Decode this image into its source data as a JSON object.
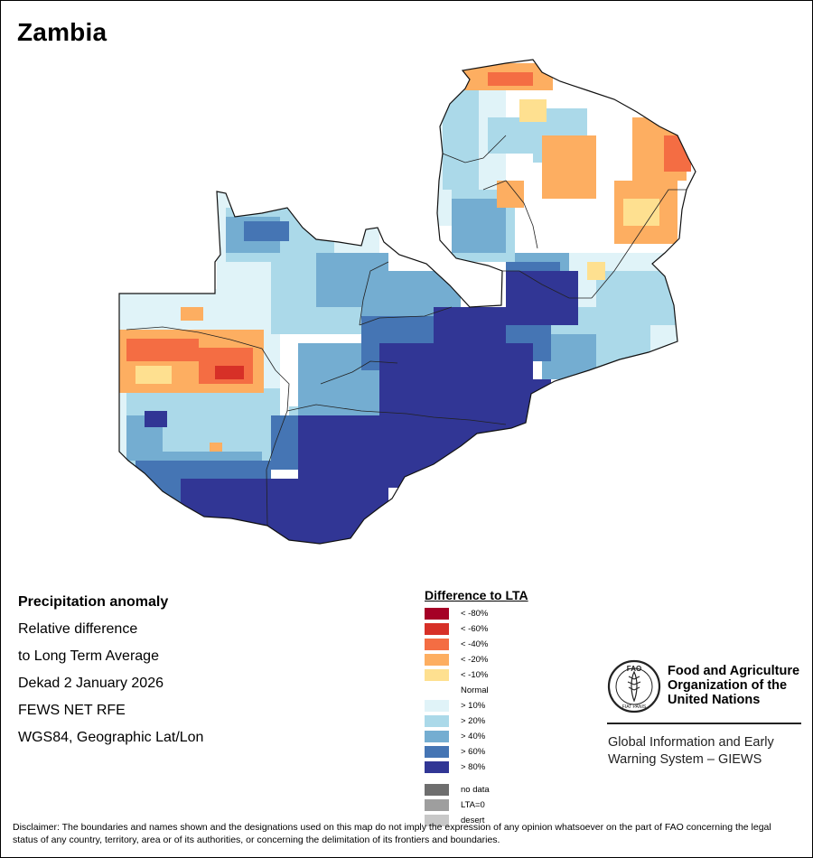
{
  "map": {
    "title": "Zambia",
    "info_lines": [
      "Precipitation anomaly",
      "Relative difference",
      "to Long Term Average",
      "Dekad 2 January 2026",
      "FEWS NET RFE",
      "WGS84, Geographic Lat/Lon"
    ]
  },
  "legend": {
    "title": "Difference to LTA",
    "items": [
      {
        "label": "< -80%",
        "color": "#a50026"
      },
      {
        "label": "< -60%",
        "color": "#d73027"
      },
      {
        "label": "< -40%",
        "color": "#f46d43"
      },
      {
        "label": "< -20%",
        "color": "#fdae61"
      },
      {
        "label": "< -10%",
        "color": "#fee090"
      },
      {
        "label": "Normal",
        "color": "#ffffff"
      },
      {
        "label": "> 10%",
        "color": "#e0f3f8"
      },
      {
        "label": "> 20%",
        "color": "#abd9e9"
      },
      {
        "label": "> 40%",
        "color": "#74add1"
      },
      {
        "label": "> 60%",
        "color": "#4575b4"
      },
      {
        "label": "> 80%",
        "color": "#313695"
      }
    ],
    "extra": [
      {
        "label": "no data",
        "color": "#6e6e6e"
      },
      {
        "label": "LTA=0",
        "color": "#9e9e9e"
      },
      {
        "label": "desert",
        "color": "#c8c8c8"
      }
    ]
  },
  "fao": {
    "logo_text": "FAO",
    "logo_motto": "FIAT PANIS",
    "name_lines": [
      "Food and Agriculture",
      "Organization of the",
      "United Nations"
    ],
    "giews_lines": [
      "Global Information and Early",
      "Warning System – GIEWS"
    ]
  },
  "disclaimer": "Disclaimer: The boundaries and names shown and the designations used on this map do not imply the expression of any opinion whatsoever on the part of FAO concerning the legal status of any country, territory, area or of its authorities, or concerning the delimitation of its frontiers and boundaries."
}
